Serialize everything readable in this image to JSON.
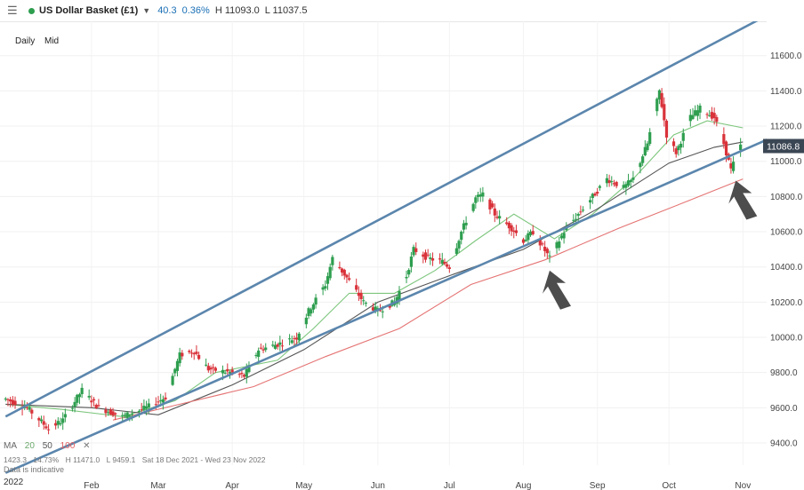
{
  "header": {
    "menu_icon": "menu-icon",
    "status_color": "#2e9e4f",
    "symbol": "US Dollar Basket (£1)",
    "dropdown_icon": "chevron-down-icon",
    "change": "40.3",
    "change_pct": "0.36%",
    "high": "H 11093.0",
    "low": "L 11037.5"
  },
  "timeframe": {
    "daily": "Daily",
    "mid": "Mid"
  },
  "indicator_legend": {
    "label": "MA",
    "ma20": "20",
    "ma50": "50",
    "ma100": "100"
  },
  "stats": {
    "change": "1423.3",
    "change_pct": "14.73%",
    "high": "H 11471.0",
    "low": "L 9459.1",
    "range": "Sat 18 Dec 2021 - Wed 23 Nov 2022"
  },
  "disclaimer": "Data is indicative",
  "year_label": "2022",
  "chart_data": {
    "type": "candlestick",
    "instrument": "US Dollar Basket (£1)",
    "last_price": "11086.8",
    "ylim": [
      9300,
      11800
    ],
    "y_ticks": [
      9400,
      9600,
      9800,
      10000,
      10200,
      10400,
      10600,
      10800,
      11000,
      11200,
      11400,
      11600
    ],
    "y_tick_labels": [
      "9400.0",
      "9600.0",
      "9800.0",
      "10000.0",
      "10200.0",
      "10400.0",
      "10600.0",
      "10800.0",
      "11000.0",
      "11200.0",
      "11400.0",
      "11600.0"
    ],
    "x_tick_labels": [
      {
        "date": "2022-02-01",
        "label": "Feb"
      },
      {
        "date": "2022-03-01",
        "label": "Mar"
      },
      {
        "date": "2022-04-01",
        "label": "Apr"
      },
      {
        "date": "2022-05-01",
        "label": "May"
      },
      {
        "date": "2022-06-01",
        "label": "Jun"
      },
      {
        "date": "2022-07-01",
        "label": "Jul"
      },
      {
        "date": "2022-08-01",
        "label": "Aug"
      },
      {
        "date": "2022-09-01",
        "label": "Sep"
      },
      {
        "date": "2022-10-01",
        "label": "Oct"
      },
      {
        "date": "2022-11-01",
        "label": "Nov"
      }
    ],
    "colors": {
      "up": "#2e9e4f",
      "down": "#d9323a",
      "ma20": "#7dc67d",
      "ma50": "#555555",
      "ma100": "#e57373",
      "channel": "#5b86ad",
      "arrow": "#4d4d4d",
      "price_box": "#3b4654"
    },
    "close_path": [
      [
        "2021-12-27",
        9650
      ],
      [
        "2022-01-05",
        9600
      ],
      [
        "2022-01-14",
        9480
      ],
      [
        "2022-01-20",
        9530
      ],
      [
        "2022-01-28",
        9700
      ],
      [
        "2022-02-04",
        9600
      ],
      [
        "2022-02-14",
        9550
      ],
      [
        "2022-02-24",
        9600
      ],
      [
        "2022-03-04",
        9660
      ],
      [
        "2022-03-10",
        9900
      ],
      [
        "2022-03-16",
        9920
      ],
      [
        "2022-03-22",
        9820
      ],
      [
        "2022-03-31",
        9800
      ],
      [
        "2022-04-06",
        9780
      ],
      [
        "2022-04-12",
        9930
      ],
      [
        "2022-04-20",
        9960
      ],
      [
        "2022-04-28",
        10000
      ],
      [
        "2022-05-03",
        10150
      ],
      [
        "2022-05-10",
        10300
      ],
      [
        "2022-05-13",
        10450
      ],
      [
        "2022-05-20",
        10320
      ],
      [
        "2022-05-26",
        10200
      ],
      [
        "2022-06-01",
        10150
      ],
      [
        "2022-06-08",
        10200
      ],
      [
        "2022-06-13",
        10350
      ],
      [
        "2022-06-16",
        10500
      ],
      [
        "2022-06-22",
        10450
      ],
      [
        "2022-06-28",
        10430
      ],
      [
        "2022-07-01",
        10400
      ],
      [
        "2022-07-06",
        10600
      ],
      [
        "2022-07-12",
        10790
      ],
      [
        "2022-07-15",
        10810
      ],
      [
        "2022-07-20",
        10700
      ],
      [
        "2022-07-27",
        10620
      ],
      [
        "2022-08-01",
        10550
      ],
      [
        "2022-08-05",
        10600
      ],
      [
        "2022-08-12",
        10450
      ],
      [
        "2022-08-18",
        10600
      ],
      [
        "2022-08-24",
        10700
      ],
      [
        "2022-08-30",
        10800
      ],
      [
        "2022-09-05",
        10900
      ],
      [
        "2022-09-12",
        10850
      ],
      [
        "2022-09-16",
        10900
      ],
      [
        "2022-09-22",
        11100
      ],
      [
        "2022-09-27",
        11400
      ],
      [
        "2022-09-30",
        11150
      ],
      [
        "2022-10-04",
        11050
      ],
      [
        "2022-10-10",
        11250
      ],
      [
        "2022-10-14",
        11300
      ],
      [
        "2022-10-20",
        11250
      ],
      [
        "2022-10-24",
        11100
      ],
      [
        "2022-10-27",
        10950
      ],
      [
        "2022-10-31",
        11086.8
      ]
    ],
    "moving_averages": [
      {
        "name": "20",
        "points": [
          [
            "2021-12-27",
            9620
          ],
          [
            "2022-01-20",
            9590
          ],
          [
            "2022-02-14",
            9550
          ],
          [
            "2022-03-08",
            9640
          ],
          [
            "2022-03-25",
            9800
          ],
          [
            "2022-04-20",
            9870
          ],
          [
            "2022-05-05",
            10050
          ],
          [
            "2022-05-20",
            10250
          ],
          [
            "2022-06-08",
            10250
          ],
          [
            "2022-06-25",
            10380
          ],
          [
            "2022-07-12",
            10550
          ],
          [
            "2022-07-28",
            10700
          ],
          [
            "2022-08-14",
            10560
          ],
          [
            "2022-08-30",
            10700
          ],
          [
            "2022-09-16",
            10900
          ],
          [
            "2022-10-03",
            11150
          ],
          [
            "2022-10-17",
            11230
          ],
          [
            "2022-11-01",
            11190
          ]
        ]
      },
      {
        "name": "50",
        "points": [
          [
            "2021-12-27",
            9620
          ],
          [
            "2022-02-01",
            9600
          ],
          [
            "2022-03-01",
            9560
          ],
          [
            "2022-04-01",
            9730
          ],
          [
            "2022-05-01",
            9930
          ],
          [
            "2022-06-01",
            10200
          ],
          [
            "2022-07-01",
            10350
          ],
          [
            "2022-08-01",
            10500
          ],
          [
            "2022-09-01",
            10730
          ],
          [
            "2022-10-01",
            10990
          ],
          [
            "2022-10-20",
            11080
          ],
          [
            "2022-11-01",
            11110
          ]
        ]
      },
      {
        "name": "100",
        "points": [
          [
            "2022-02-10",
            9530
          ],
          [
            "2022-03-10",
            9620
          ],
          [
            "2022-04-10",
            9720
          ],
          [
            "2022-05-10",
            9890
          ],
          [
            "2022-06-10",
            10050
          ],
          [
            "2022-07-10",
            10300
          ],
          [
            "2022-08-10",
            10440
          ],
          [
            "2022-09-10",
            10620
          ],
          [
            "2022-10-10",
            10780
          ],
          [
            "2022-11-01",
            10900
          ]
        ]
      }
    ],
    "trend_channel": [
      {
        "name": "upper",
        "points": [
          [
            "2021-12-27",
            9550
          ],
          [
            "2022-11-14",
            11850
          ]
        ]
      },
      {
        "name": "lower",
        "points": [
          [
            "2021-12-27",
            9230
          ],
          [
            "2022-11-14",
            11140
          ]
        ]
      }
    ],
    "annotations": [
      {
        "type": "arrow",
        "date": "2022-08-12",
        "value": 10380,
        "direction": "up"
      },
      {
        "type": "arrow",
        "date": "2022-10-29",
        "value": 10890,
        "direction": "up"
      }
    ]
  }
}
